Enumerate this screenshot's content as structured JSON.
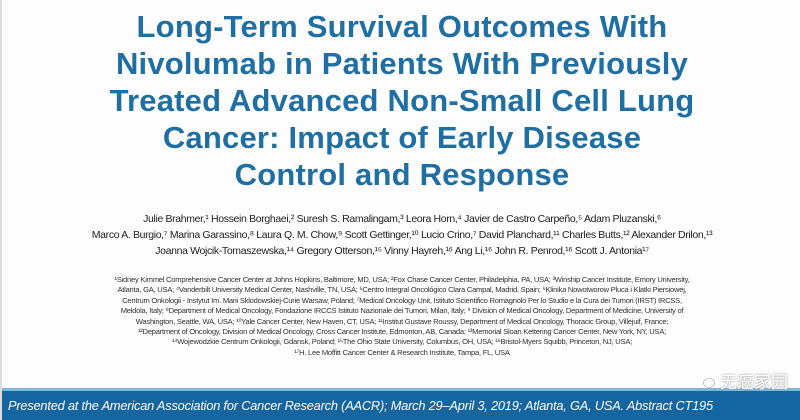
{
  "title_lines": [
    "Long-Term Survival Outcomes With",
    "Nivolumab in Patients With Previously",
    "Treated Advanced Non-Small Cell Lung",
    "Cancer: Impact of Early Disease",
    "Control and Response"
  ],
  "authors_lines": [
    "Julie Brahmer,¹ Hossein Borghaei,² Suresh S. Ramalingam,³ Leora Horn,⁴ Javier de Castro Carpeño,⁵ Adam Pluzanski,⁶",
    "Marco A. Burgio,⁷ Marina Garassino,⁸ Laura Q. M. Chow,⁹ Scott Gettinger,¹⁰ Lucio Crino,⁷ David Planchard,¹¹ Charles Butts,¹² Alexander Drilon,¹³",
    "Joanna Wojcik-Tomaszewska,¹⁴ Gregory Otterson,¹⁵ Vinny Hayreh,¹⁶ Ang Li,¹⁶ John R. Penrod,¹⁶ Scott J. Antonia¹⁷"
  ],
  "affiliation_lines": [
    "¹Sidney Kimmel Comprehensive Cancer Center at Johns Hopkins, Baltimore, MD, USA; ²Fox Chase Cancer Center, Philadelphia, PA, USA; ³Winship Cancer Institute, Emory University,",
    "Atlanta, GA, USA; ⁴Vanderbilt University Medical Center, Nashville, TN, USA; ⁵Centro Integral Oncológico Clara Campal, Madrid, Spain; ⁶Klinika Nowotworow Pluca i Klatki Piersiowej,",
    "Centrum Onkologii - Instytut Im. Marii Sklodowskiej-Curie Warsaw, Poland; ⁷Medical Oncology Unit, Istituto Scientifico Romagnolo Per lo Studio e la Cura dei Tumori (IRST) IRCSS,",
    "Meldola, Italy; ⁸Department of Medical Oncology, Fondazione IRCCS Istituto Nazionale dei Tumori, Milan, Italy; ⁹ Division of Medical Oncology, Department of Medicine, University of",
    "Washington, Seattle, WA, USA; ¹⁰Yale Cancer Center, New Haven, CT, USA; ¹¹Institut Gustave Roussy, Department of Medical Oncology, Thoracic Group, Villejuif, France;",
    "¹²Department of Oncology, Division of Medical Oncology, Cross Cancer Institute, Edmonton, AB, Canada; ¹³Memorial Sloan Kettering Cancer Center, New York, NY, USA;",
    "¹⁴Wojewodzkie Centrum Onkologii, Gdansk, Poland; ¹⁵The Ohio State University, Columbus, OH, USA; ¹⁶Bristol-Myers Squibb, Princeton, NJ, USA;",
    "¹⁷H. Lee Moffitt Cancer Center & Research Institute, Tampa, FL, USA"
  ],
  "footer": {
    "text": "Presented at the American Association for Cancer Research (AACR); March 29–April 3, 2019; Atlanta, GA, USA. Abstract CT195"
  },
  "watermark": {
    "text": "无癌家园",
    "icon": "wechat-icon"
  },
  "colors": {
    "title": "#1f6fa3",
    "footer_band": "#1565a0",
    "footer_line": "#7fb7d6"
  }
}
